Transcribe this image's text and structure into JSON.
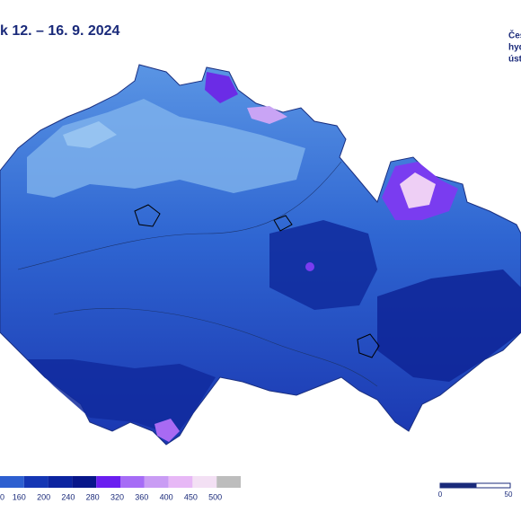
{
  "title": "k 12. – 16. 9. 2024",
  "logo": [
    "Čes",
    "hyd",
    "úst"
  ],
  "legend": {
    "labels": [
      "0",
      "160",
      "200",
      "240",
      "280",
      "320",
      "360",
      "400",
      "450",
      "500"
    ],
    "colors": [
      "#2d5fd0",
      "#1536b4",
      "#0c24a0",
      "#08168a",
      "#6a1ef0",
      "#a66cf6",
      "#c99cf4",
      "#e7b8f6",
      "#f3e0f4",
      "#bdbdbd"
    ]
  },
  "scale_bar": {
    "labels": [
      "0",
      "50"
    ]
  }
}
